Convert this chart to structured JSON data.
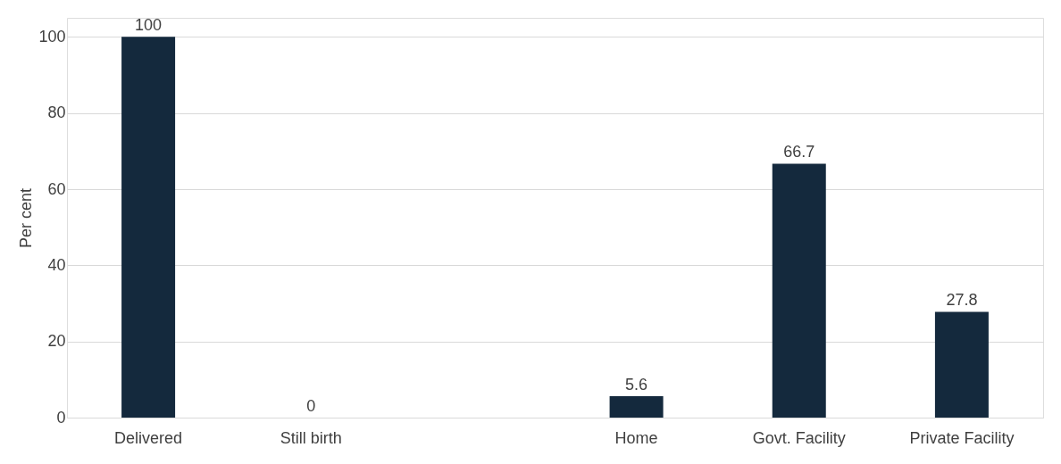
{
  "chart_data": {
    "type": "bar",
    "ylabel": "Per cent",
    "categories": [
      "Delivered",
      "Still birth",
      null,
      "Home",
      "Govt. Facility",
      "Private Facility"
    ],
    "values": [
      100,
      0,
      null,
      5.6,
      66.7,
      27.8
    ],
    "color": "#14293d",
    "ylim": [
      0,
      105
    ],
    "yticks": [
      0,
      20,
      40,
      60,
      80,
      100
    ],
    "grid": "y",
    "data_labels": true
  }
}
